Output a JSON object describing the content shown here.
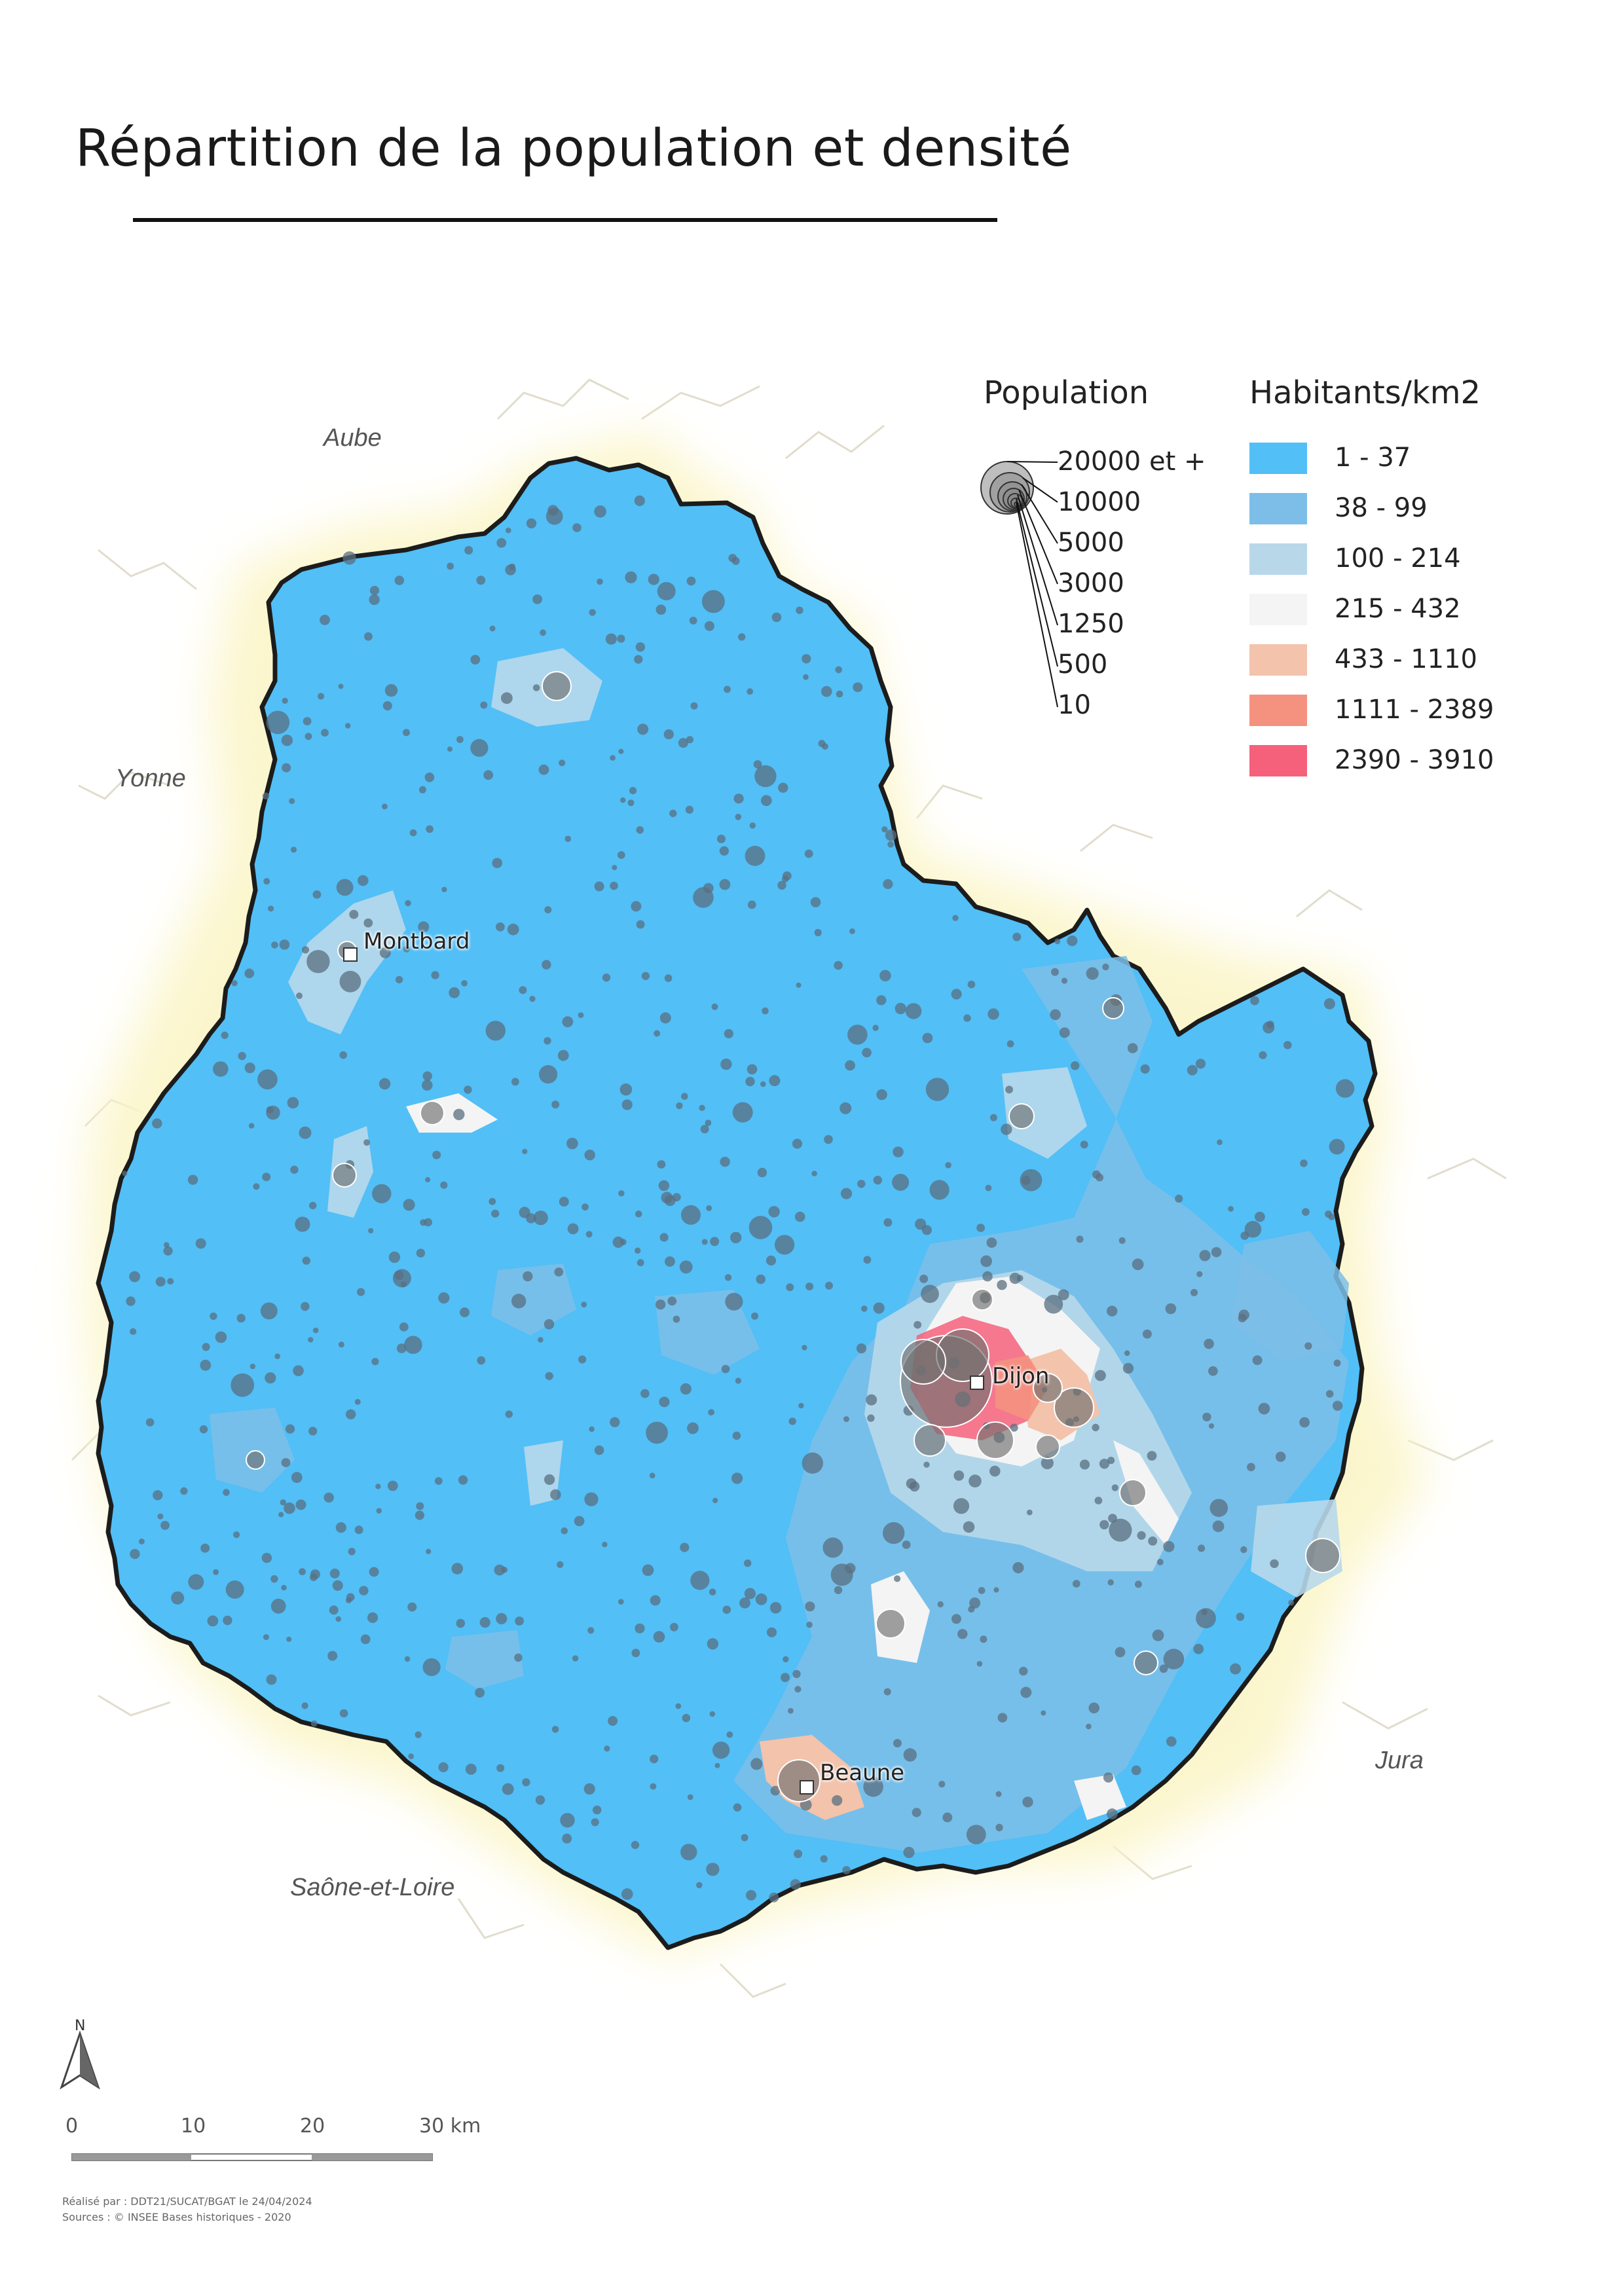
{
  "title": "Répartition de la population et densité",
  "neighbors": {
    "aube": "Aube",
    "yonne": "Yonne",
    "saone_et_loire": "Saône-et-Loire",
    "jura": "Jura"
  },
  "cities": {
    "montbard": "Montbard",
    "dijon": "Dijon",
    "beaune": "Beaune"
  },
  "legend_population": {
    "title": "Population",
    "classes": [
      "20000 et +",
      "10000",
      "5000",
      "3000",
      "1250",
      "500",
      "10"
    ]
  },
  "legend_density": {
    "title": "Habitants/km2",
    "classes": [
      {
        "label": "1 - 37",
        "color": "#52bff7"
      },
      {
        "label": "38 - 99",
        "color": "#7dbee8"
      },
      {
        "label": "100 - 214",
        "color": "#b8d8ea"
      },
      {
        "label": "215 - 432",
        "color": "#f4f4f4"
      },
      {
        "label": "433 - 1110",
        "color": "#f3c3ac"
      },
      {
        "label": "1111 - 2389",
        "color": "#f4917f"
      },
      {
        "label": "2390 - 3910",
        "color": "#f5617b"
      }
    ]
  },
  "scale_bar": {
    "ticks": [
      "0",
      "10",
      "20",
      "30 km"
    ]
  },
  "north_label": "N",
  "footer": {
    "line1": "Réalisé par : DDT21/SUCAT/BGAT le 24/04/2024",
    "line2": "Sources : © INSEE Bases historiques - 2020"
  },
  "colors": {
    "department_outline": "#1c1c1c",
    "halo": "#fbf5c8",
    "neighbor_borders": "#d9d4bf",
    "population_dot": "#5a6f80"
  }
}
